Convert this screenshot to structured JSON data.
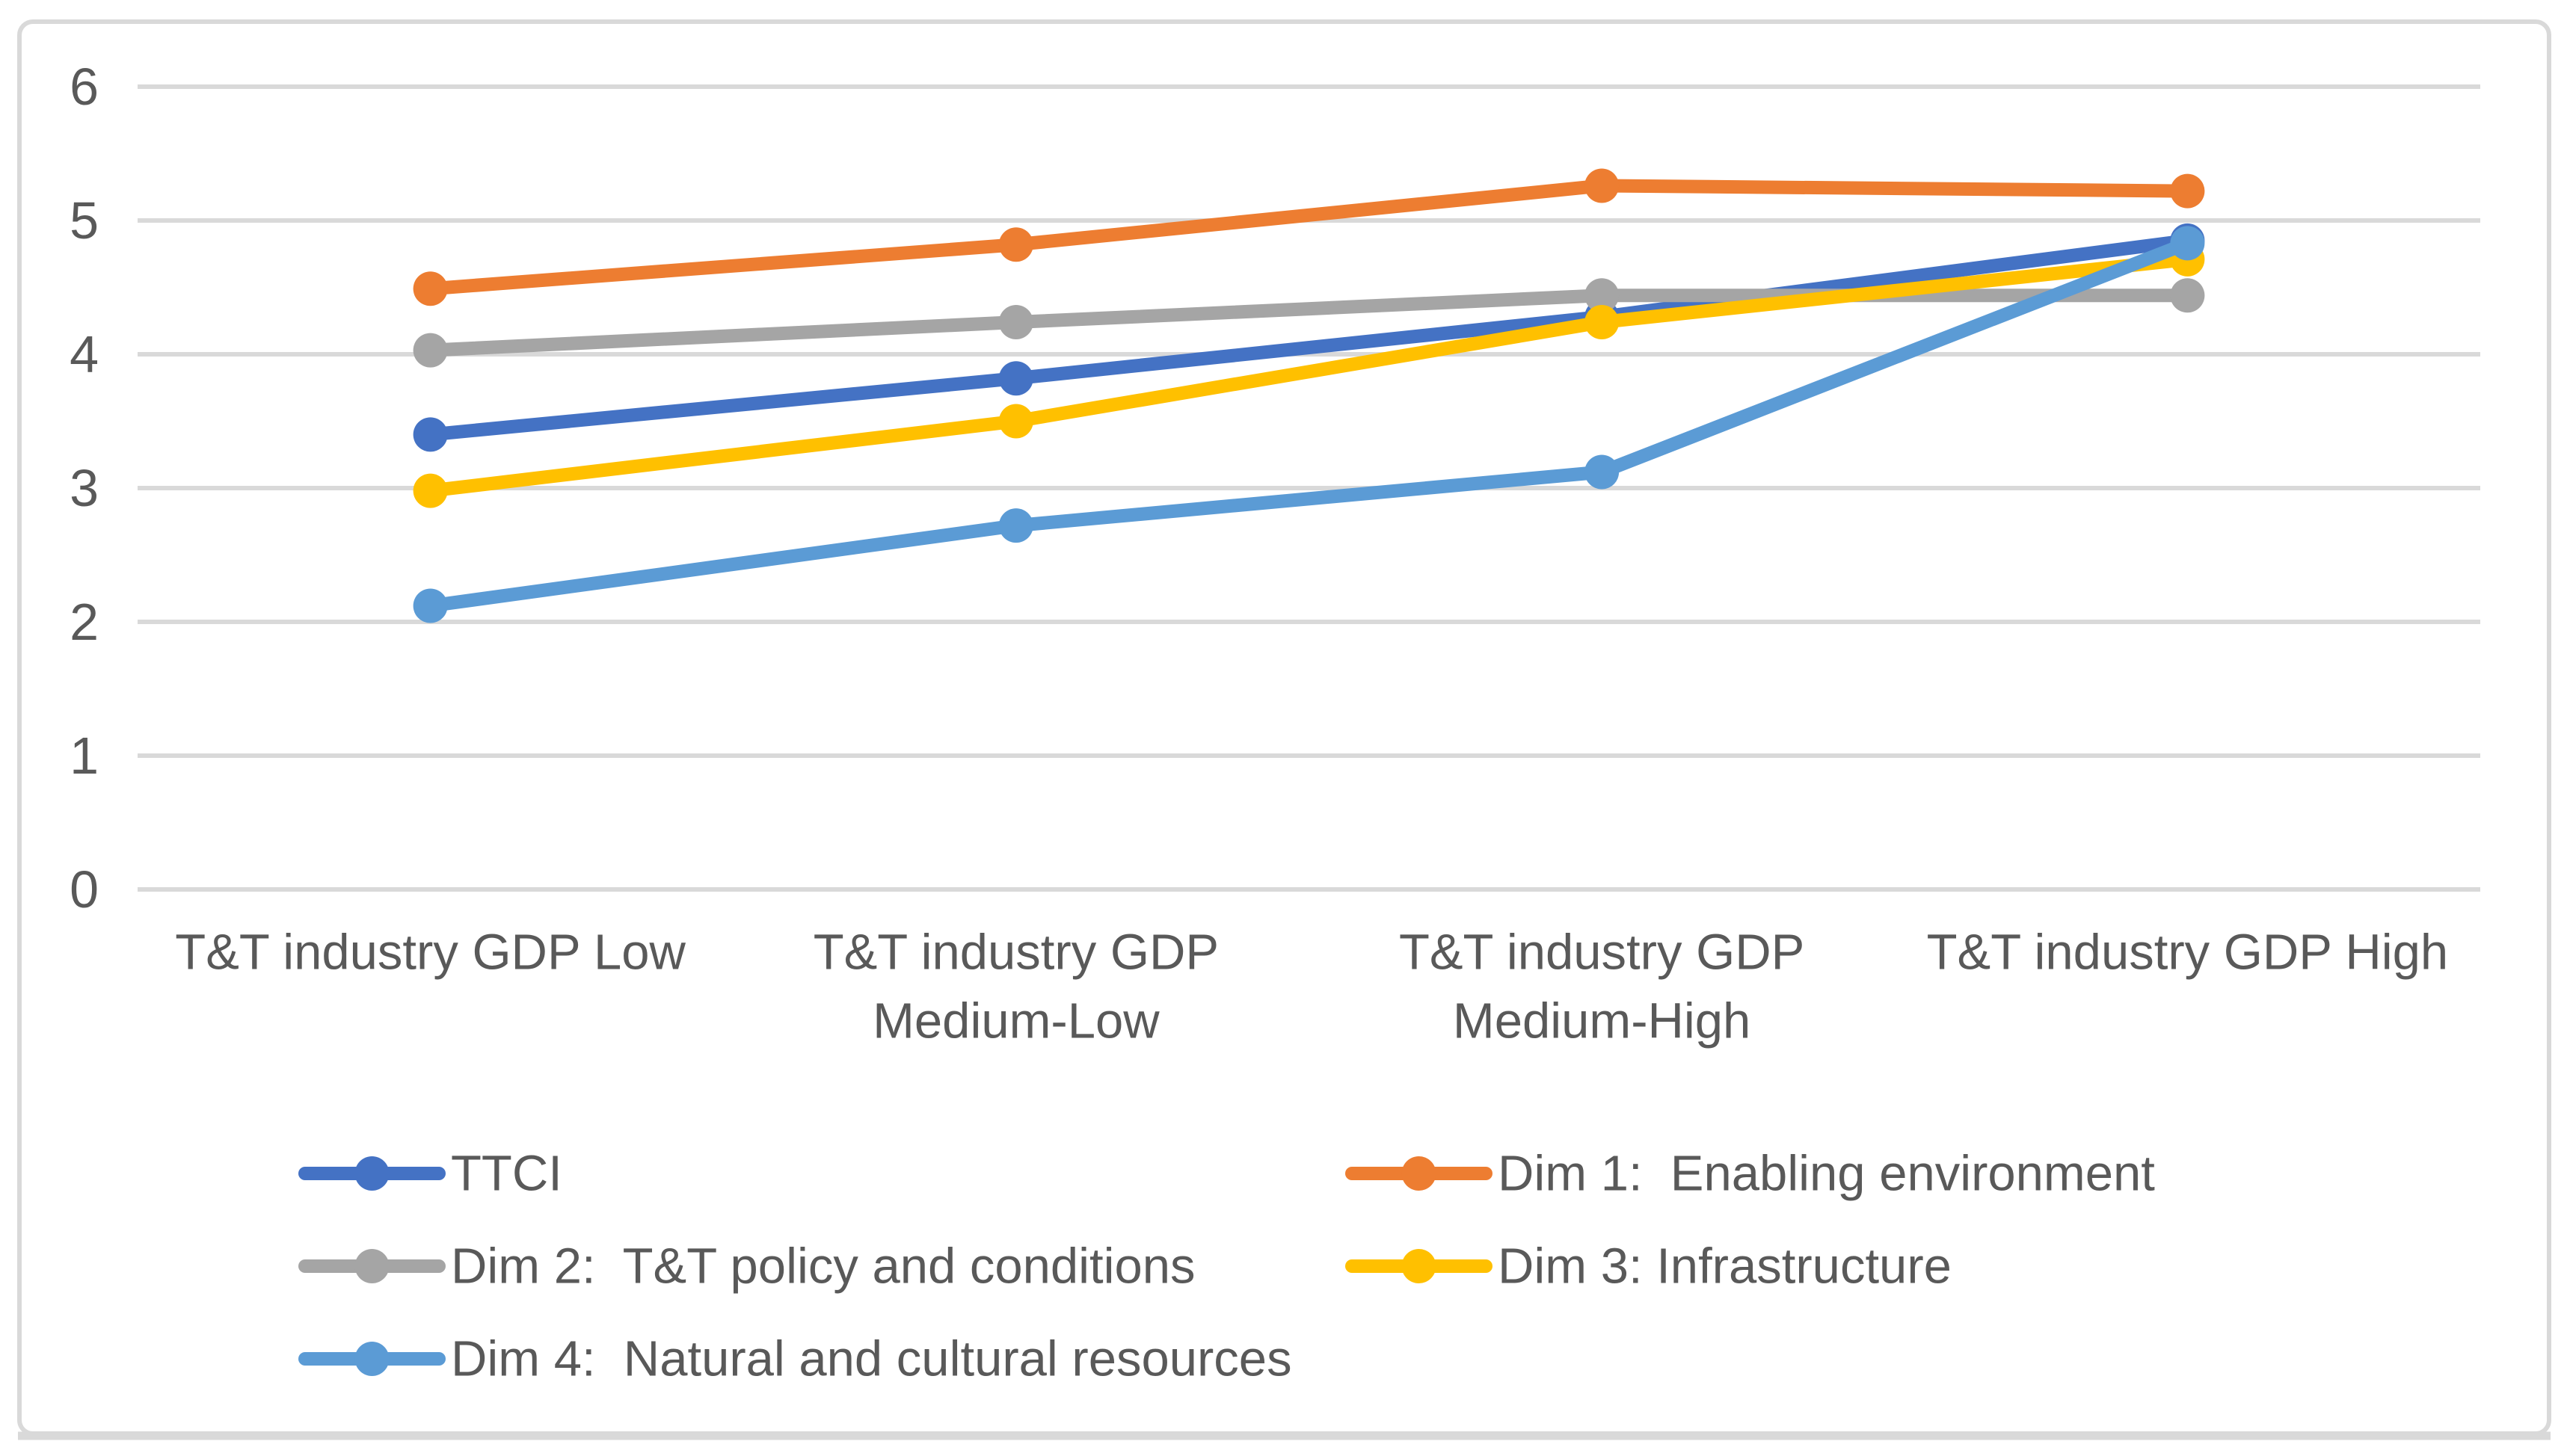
{
  "chart_data": {
    "type": "line",
    "title": "",
    "categories": [
      "T&T industry GDP Low",
      "T&T industry GDP Medium-Low",
      "T&T industry GDP Medium-High",
      "T&T industry GDP High"
    ],
    "category_label_lines": [
      [
        "T&T industry GDP Low"
      ],
      [
        "T&T industry GDP",
        "Medium-Low"
      ],
      [
        "T&T industry GDP",
        "Medium-High"
      ],
      [
        "T&T industry GDP High"
      ]
    ],
    "series": [
      {
        "name": "TTCI",
        "color": "#4472C4",
        "values": [
          3.4,
          3.82,
          4.28,
          4.85
        ]
      },
      {
        "name": "Dim 1:  Enabling environment",
        "color": "#ED7D31",
        "values": [
          4.49,
          4.82,
          5.26,
          5.22
        ]
      },
      {
        "name": "Dim 2:  T&T policy and conditions",
        "color": "#A5A5A5",
        "values": [
          4.03,
          4.24,
          4.44,
          4.44
        ]
      },
      {
        "name": "Dim 3: Infrastructure",
        "color": "#FFC000",
        "values": [
          2.98,
          3.5,
          4.24,
          4.71
        ]
      },
      {
        "name": "Dim 4:  Natural and cultural resources",
        "color": "#5B9BD5",
        "values": [
          2.12,
          2.72,
          3.12,
          4.83
        ]
      }
    ],
    "xlabel": "",
    "ylabel": "",
    "ylim": [
      0,
      6
    ],
    "yticks": [
      0,
      1,
      2,
      3,
      4,
      5,
      6
    ],
    "grid": true,
    "marker": "circle",
    "legend_position": "bottom",
    "legend_columns": [
      [
        0,
        2,
        4
      ],
      [
        1,
        3
      ]
    ],
    "axis_text_color": "#595959",
    "gridline_color": "#D9D9D9",
    "frame_color": "#D9D9D9",
    "background": "#FFFFFF"
  }
}
